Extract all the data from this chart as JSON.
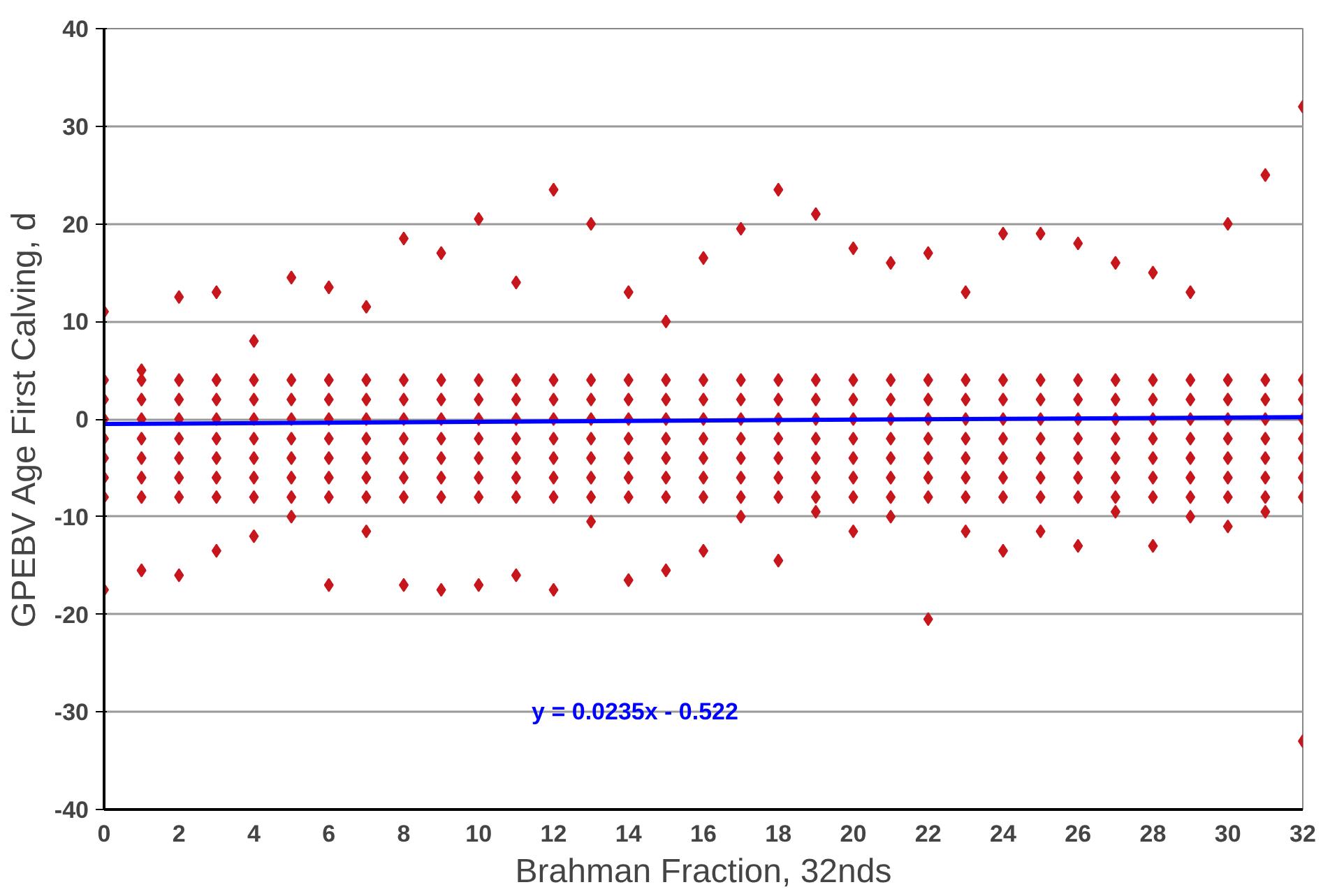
{
  "chart_data": {
    "type": "scatter",
    "xlabel": "Brahman Fraction, 32nds",
    "ylabel": "GPEBV Age First Calving, d",
    "xlim": [
      0,
      32
    ],
    "ylim": [
      -40,
      40
    ],
    "xticks": [
      0,
      2,
      4,
      6,
      8,
      10,
      12,
      14,
      16,
      18,
      20,
      22,
      24,
      26,
      28,
      30,
      32
    ],
    "yticks": [
      -40,
      -30,
      -20,
      -10,
      0,
      10,
      20,
      30,
      40
    ],
    "grid": "y",
    "annotations": [
      "y = 0.0235x - 0.522"
    ],
    "series": [
      {
        "color": "#c8161d",
        "marker": "diamond",
        "x": [
          0,
          0,
          0,
          0,
          0,
          0,
          0,
          0,
          0,
          1,
          1,
          1,
          1,
          1,
          1,
          1,
          1,
          1,
          2,
          2,
          2,
          2,
          2,
          2,
          2,
          2,
          2,
          3,
          3,
          3,
          3,
          3,
          3,
          3,
          3,
          3,
          4,
          4,
          4,
          4,
          4,
          4,
          4,
          4,
          4,
          5,
          5,
          5,
          5,
          5,
          5,
          5,
          5,
          5,
          6,
          6,
          6,
          6,
          6,
          6,
          6,
          6,
          6,
          7,
          7,
          7,
          7,
          7,
          7,
          7,
          7,
          7,
          8,
          8,
          8,
          8,
          8,
          8,
          8,
          8,
          8,
          9,
          9,
          9,
          9,
          9,
          9,
          9,
          9,
          9,
          10,
          10,
          10,
          10,
          10,
          10,
          10,
          10,
          10,
          11,
          11,
          11,
          11,
          11,
          11,
          11,
          11,
          11,
          12,
          12,
          12,
          12,
          12,
          12,
          12,
          12,
          12,
          13,
          13,
          13,
          13,
          13,
          13,
          13,
          13,
          13,
          14,
          14,
          14,
          14,
          14,
          14,
          14,
          14,
          14,
          15,
          15,
          15,
          15,
          15,
          15,
          15,
          15,
          15,
          16,
          16,
          16,
          16,
          16,
          16,
          16,
          16,
          16,
          17,
          17,
          17,
          17,
          17,
          17,
          17,
          17,
          17,
          18,
          18,
          18,
          18,
          18,
          18,
          18,
          18,
          18,
          19,
          19,
          19,
          19,
          19,
          19,
          19,
          19,
          19,
          20,
          20,
          20,
          20,
          20,
          20,
          20,
          20,
          20,
          21,
          21,
          21,
          21,
          21,
          21,
          21,
          21,
          21,
          22,
          22,
          22,
          22,
          22,
          22,
          22,
          22,
          22,
          23,
          23,
          23,
          23,
          23,
          23,
          23,
          23,
          23,
          24,
          24,
          24,
          24,
          24,
          24,
          24,
          24,
          24,
          25,
          25,
          25,
          25,
          25,
          25,
          25,
          25,
          25,
          26,
          26,
          26,
          26,
          26,
          26,
          26,
          26,
          26,
          27,
          27,
          27,
          27,
          27,
          27,
          27,
          27,
          27,
          28,
          28,
          28,
          28,
          28,
          28,
          28,
          28,
          28,
          29,
          29,
          29,
          29,
          29,
          29,
          29,
          29,
          29,
          30,
          30,
          30,
          30,
          30,
          30,
          30,
          30,
          30,
          31,
          31,
          31,
          31,
          31,
          31,
          31,
          31,
          31,
          32,
          32,
          32,
          32,
          32,
          32,
          32,
          32,
          32
        ],
        "values": [
          11,
          4,
          2,
          0,
          -2,
          -4,
          -6,
          -8,
          -17.5,
          5,
          4,
          2,
          0,
          -2,
          -4,
          -6,
          -8,
          -15.5,
          12.5,
          4,
          2,
          0,
          -2,
          -4,
          -6,
          -8,
          -16,
          13,
          4,
          2,
          0,
          -2,
          -4,
          -6,
          -8,
          -13.5,
          8,
          4,
          2,
          0,
          -2,
          -4,
          -6,
          -8,
          -12,
          14.5,
          4,
          2,
          0,
          -2,
          -4,
          -6,
          -8,
          -10,
          13.5,
          4,
          2,
          0,
          -2,
          -4,
          -6,
          -8,
          -17,
          11.5,
          4,
          2,
          0,
          -2,
          -4,
          -6,
          -8,
          -11.5,
          18.5,
          4,
          2,
          0,
          -2,
          -4,
          -6,
          -8,
          -17,
          17,
          4,
          2,
          0,
          -2,
          -4,
          -6,
          -8,
          -17.5,
          20.5,
          4,
          2,
          0,
          -2,
          -4,
          -6,
          -8,
          -17,
          14,
          4,
          2,
          0,
          -2,
          -4,
          -6,
          -8,
          -16,
          23.5,
          4,
          2,
          0,
          -2,
          -4,
          -6,
          -8,
          -17.5,
          20,
          4,
          2,
          0,
          -2,
          -4,
          -6,
          -8,
          -10.5,
          13,
          4,
          2,
          0,
          -2,
          -4,
          -6,
          -8,
          -16.5,
          10,
          4,
          2,
          0,
          -2,
          -4,
          -6,
          -8,
          -15.5,
          16.5,
          4,
          2,
          0,
          -2,
          -4,
          -6,
          -8,
          -13.5,
          19.5,
          4,
          2,
          0,
          -2,
          -4,
          -6,
          -8,
          -10,
          23.5,
          4,
          2,
          0,
          -2,
          -4,
          -6,
          -8,
          -14.5,
          21,
          4,
          2,
          0,
          -2,
          -4,
          -6,
          -8,
          -9.5,
          17.5,
          4,
          2,
          0,
          -2,
          -4,
          -6,
          -8,
          -11.5,
          16,
          4,
          2,
          0,
          -2,
          -4,
          -6,
          -8,
          -10,
          17,
          4,
          2,
          0,
          -2,
          -4,
          -6,
          -8,
          -20.5,
          13,
          4,
          2,
          0,
          -2,
          -4,
          -6,
          -8,
          -11.5,
          19,
          4,
          2,
          0,
          -2,
          -4,
          -6,
          -8,
          -13.5,
          19,
          4,
          2,
          0,
          -2,
          -4,
          -6,
          -8,
          -11.5,
          18,
          4,
          2,
          0,
          -2,
          -4,
          -6,
          -8,
          -13,
          16,
          4,
          2,
          0,
          -2,
          -4,
          -6,
          -8,
          -9.5,
          15,
          4,
          2,
          0,
          -2,
          -4,
          -6,
          -8,
          -13,
          13,
          4,
          2,
          0,
          -2,
          -4,
          -6,
          -8,
          -10,
          20,
          4,
          2,
          0,
          -2,
          -4,
          -6,
          -8,
          -11,
          25,
          4,
          2,
          0,
          -2,
          -4,
          -6,
          -8,
          -9.5,
          32,
          4,
          2,
          0,
          -2,
          -4,
          -6,
          -8,
          -33
        ]
      },
      {
        "type": "line",
        "marker": "none",
        "color": "#0000ff",
        "x": [
          0,
          32
        ],
        "values": [
          -0.5,
          0.2
        ]
      }
    ]
  }
}
